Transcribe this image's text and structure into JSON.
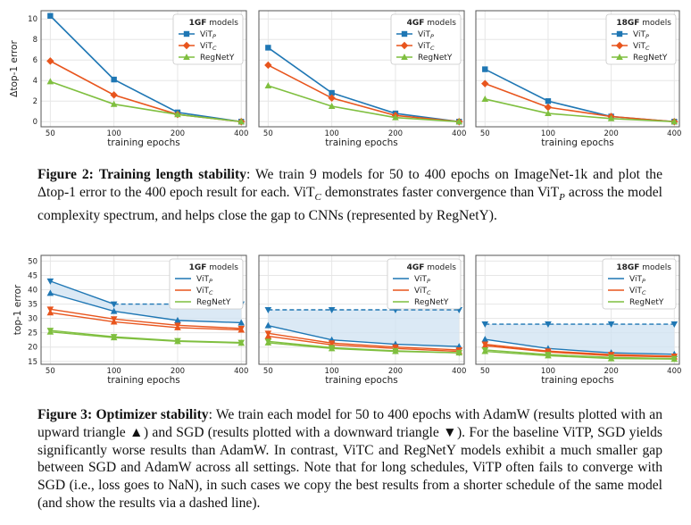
{
  "colors": {
    "vitp": "#1f77b4",
    "vitc": "#e8551d",
    "regnety": "#7fbf3f",
    "shade": "#cfe1f2",
    "frame": "#555555",
    "grid": "#e6e6e6"
  },
  "figure2": {
    "caption_label": "Figure 2:",
    "caption_title": "Training length stability",
    "caption_body": ": We train 9 models for 50 to 400 epochs on ImageNet-1k and plot the Δtop-1 error to the 400 epoch result for each. ViT",
    "caption_sub1": "C",
    "caption_mid": " demonstrates faster convergence than ViT",
    "caption_sub2": "P",
    "caption_end": " across the model complexity spectrum, and helps close the gap to CNNs (represented by RegNetY)."
  },
  "figure3": {
    "caption_label": "Figure 3:",
    "caption_title": "Optimizer stability",
    "caption_text": ": We train each model for 50 to 400 epochs with AdamW (results plotted with an upward triangle ▲) and SGD (results plotted with a downward triangle ▼). For the baseline ViTP, SGD yields significantly worse results than AdamW. In contrast, ViTC and RegNetY models exhibit a much smaller gap between SGD and AdamW across all settings. Note that for long schedules, ViTP often fails to converge with SGD (i.e., loss goes to NaN), in such cases we copy the best results from a shorter schedule of the same model (and show the results via a dashed line)."
  },
  "chart_data": [
    {
      "type": "line",
      "figure": "Figure 2",
      "legend_title": "1GF models",
      "legend_position": "top-right",
      "xlabel": "training epochs",
      "ylabel": "Δtop-1 error",
      "x": [
        50,
        100,
        200,
        400
      ],
      "x_ticks": [
        "50",
        "100",
        "200",
        "400"
      ],
      "y_ticks": [
        "0",
        "2",
        "4",
        "6",
        "8",
        "10"
      ],
      "ylim": [
        -0.5,
        10.8
      ],
      "grid": true,
      "series": [
        {
          "name": "ViTP",
          "values": [
            10.3,
            4.1,
            0.9,
            0.0
          ]
        },
        {
          "name": "ViTC",
          "values": [
            5.9,
            2.6,
            0.7,
            0.0
          ]
        },
        {
          "name": "RegNetY",
          "values": [
            3.9,
            1.7,
            0.7,
            0.0
          ]
        }
      ]
    },
    {
      "type": "line",
      "figure": "Figure 2",
      "legend_title": "4GF models",
      "legend_position": "top-right",
      "xlabel": "training epochs",
      "ylabel": "",
      "x": [
        50,
        100,
        200,
        400
      ],
      "x_ticks": [
        "50",
        "100",
        "200",
        "400"
      ],
      "y_ticks": [],
      "ylim": [
        -0.5,
        10.8
      ],
      "grid": true,
      "series": [
        {
          "name": "ViTP",
          "values": [
            7.2,
            2.8,
            0.8,
            0.0
          ]
        },
        {
          "name": "ViTC",
          "values": [
            5.5,
            2.3,
            0.6,
            0.0
          ]
        },
        {
          "name": "RegNetY",
          "values": [
            3.5,
            1.5,
            0.4,
            0.0
          ]
        }
      ]
    },
    {
      "type": "line",
      "figure": "Figure 2",
      "legend_title": "18GF models",
      "legend_position": "top-right",
      "xlabel": "training epochs",
      "ylabel": "",
      "x": [
        50,
        100,
        200,
        400
      ],
      "x_ticks": [
        "50",
        "100",
        "200",
        "400"
      ],
      "y_ticks": [],
      "ylim": [
        -0.5,
        10.8
      ],
      "grid": true,
      "series": [
        {
          "name": "ViTP",
          "values": [
            5.1,
            2.0,
            0.5,
            0.0
          ]
        },
        {
          "name": "ViTC",
          "values": [
            3.7,
            1.4,
            0.5,
            0.0
          ]
        },
        {
          "name": "RegNetY",
          "values": [
            2.2,
            0.8,
            0.3,
            0.0
          ]
        }
      ]
    },
    {
      "type": "line",
      "figure": "Figure 3",
      "legend_title": "1GF models",
      "legend_position": "top-right",
      "xlabel": "training epochs",
      "ylabel": "top-1 error",
      "x": [
        50,
        100,
        200,
        400
      ],
      "x_ticks": [
        "50",
        "100",
        "200",
        "400"
      ],
      "y_ticks": [
        "15",
        "20",
        "25",
        "30",
        "35",
        "40",
        "45",
        "50"
      ],
      "ylim": [
        14,
        52
      ],
      "grid": true,
      "series": [
        {
          "name": "ViTP",
          "adamw": [
            38.8,
            32.5,
            29.3,
            28.5
          ],
          "sgd": [
            43.0,
            35.0,
            35.0,
            35.0
          ],
          "sgd_dashed_from": 1
        },
        {
          "name": "ViTC",
          "adamw": [
            32.0,
            28.8,
            26.8,
            26.0
          ],
          "sgd": [
            33.2,
            29.8,
            27.6,
            26.5
          ],
          "sgd_dashed_from": null
        },
        {
          "name": "RegNetY",
          "adamw": [
            25.3,
            23.3,
            22.0,
            21.4
          ],
          "sgd": [
            25.8,
            23.6,
            22.2,
            21.6
          ],
          "sgd_dashed_from": null
        }
      ]
    },
    {
      "type": "line",
      "figure": "Figure 3",
      "legend_title": "4GF models",
      "legend_position": "top-right",
      "xlabel": "training epochs",
      "ylabel": "",
      "x": [
        50,
        100,
        200,
        400
      ],
      "x_ticks": [
        "50",
        "100",
        "200",
        "400"
      ],
      "y_ticks": [],
      "ylim": [
        14,
        52
      ],
      "grid": true,
      "series": [
        {
          "name": "ViTP",
          "adamw": [
            27.5,
            22.5,
            21.0,
            20.2
          ],
          "sgd": [
            33.0,
            33.0,
            33.0,
            33.0
          ],
          "sgd_dashed_from": 0
        },
        {
          "name": "ViTC",
          "adamw": [
            23.8,
            20.8,
            19.5,
            18.5
          ],
          "sgd": [
            24.8,
            21.4,
            20.0,
            19.0
          ],
          "sgd_dashed_from": null
        },
        {
          "name": "RegNetY",
          "adamw": [
            21.5,
            19.5,
            18.5,
            18.0
          ],
          "sgd": [
            22.0,
            19.8,
            18.7,
            18.0
          ],
          "sgd_dashed_from": null
        }
      ]
    },
    {
      "type": "line",
      "figure": "Figure 3",
      "legend_title": "18GF models",
      "legend_position": "top-right",
      "xlabel": "training epochs",
      "ylabel": "",
      "x": [
        50,
        100,
        200,
        400
      ],
      "x_ticks": [
        "50",
        "100",
        "200",
        "400"
      ],
      "y_ticks": [],
      "ylim": [
        14,
        52
      ],
      "grid": true,
      "series": [
        {
          "name": "ViTP",
          "adamw": [
            22.7,
            19.5,
            18.0,
            17.5
          ],
          "sgd": [
            28.0,
            28.0,
            28.0,
            28.0
          ],
          "sgd_dashed_from": 0
        },
        {
          "name": "ViTC",
          "adamw": [
            20.5,
            18.3,
            17.0,
            16.6
          ],
          "sgd": [
            21.0,
            18.6,
            17.4,
            16.8
          ],
          "sgd_dashed_from": null
        },
        {
          "name": "RegNetY",
          "adamw": [
            18.5,
            17.0,
            16.0,
            15.8
          ],
          "sgd": [
            19.0,
            17.4,
            16.4,
            16.0
          ],
          "sgd_dashed_from": null
        }
      ]
    }
  ]
}
